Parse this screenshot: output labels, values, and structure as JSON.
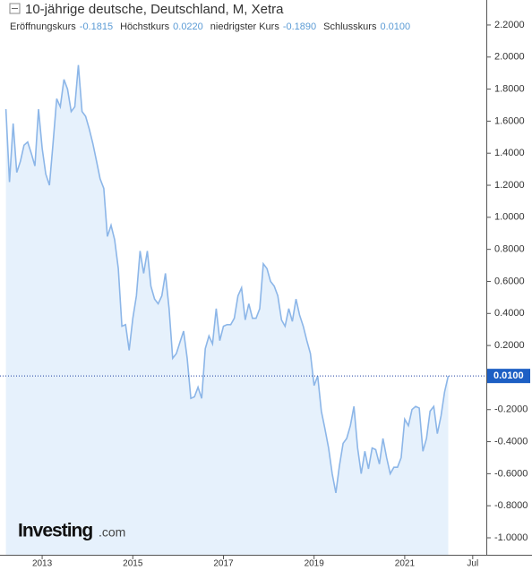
{
  "chart_data": {
    "type": "area",
    "title": "10-jährige deutsche, Deutschland, M, Xetra",
    "ohlc": [
      {
        "name": "Eröffnungskurs",
        "value": "-0.1815"
      },
      {
        "name": "Höchstkurs",
        "value": "0.0220"
      },
      {
        "name": "niedrigster Kurs",
        "value": "-0.1890"
      },
      {
        "name": "Schlusskurs",
        "value": "0.0100"
      }
    ],
    "watermark": "Investing",
    "watermark_suffix": ".com",
    "color": "#8cb6e8",
    "fill": "#e6f1fc",
    "x": [
      2012.2,
      2012.28,
      2012.36,
      2012.44,
      2012.52,
      2012.6,
      2012.68,
      2012.76,
      2012.84,
      2012.92,
      2013,
      2013.08,
      2013.16,
      2013.24,
      2013.32,
      2013.4,
      2013.48,
      2013.56,
      2013.64,
      2013.72,
      2013.8,
      2013.88,
      2013.96,
      2014.04,
      2014.12,
      2014.2,
      2014.28,
      2014.36,
      2014.44,
      2014.52,
      2014.6,
      2014.68,
      2014.76,
      2014.84,
      2014.92,
      2015,
      2015.08,
      2015.16,
      2015.24,
      2015.32,
      2015.4,
      2015.48,
      2015.56,
      2015.64,
      2015.72,
      2015.8,
      2015.88,
      2015.96,
      2016.04,
      2016.12,
      2016.2,
      2016.28,
      2016.36,
      2016.44,
      2016.52,
      2016.6,
      2016.68,
      2016.76,
      2016.84,
      2016.92,
      2017,
      2017.08,
      2017.16,
      2017.24,
      2017.32,
      2017.4,
      2017.48,
      2017.56,
      2017.64,
      2017.72,
      2017.8,
      2017.88,
      2017.96,
      2018.04,
      2018.12,
      2018.2,
      2018.28,
      2018.36,
      2018.44,
      2018.52,
      2018.6,
      2018.68,
      2018.76,
      2018.84,
      2018.92,
      2019,
      2019.08,
      2019.16,
      2019.24,
      2019.32,
      2019.4,
      2019.48,
      2019.56,
      2019.64,
      2019.72,
      2019.8,
      2019.88,
      2019.96,
      2020.04,
      2020.12,
      2020.2,
      2020.28,
      2020.36,
      2020.44,
      2020.52,
      2020.6,
      2020.68,
      2020.76,
      2020.84,
      2020.92,
      2021,
      2021.08,
      2021.16,
      2021.24,
      2021.32,
      2021.4,
      2021.48,
      2021.56,
      2021.64,
      2021.72,
      2021.8,
      2021.88,
      2021.96
    ],
    "values": [
      1.675,
      1.22,
      1.585,
      1.28,
      1.35,
      1.45,
      1.47,
      1.4,
      1.32,
      1.675,
      1.43,
      1.27,
      1.2,
      1.46,
      1.74,
      1.69,
      1.86,
      1.8,
      1.66,
      1.69,
      1.95,
      1.66,
      1.63,
      1.55,
      1.46,
      1.35,
      1.24,
      1.18,
      0.88,
      0.95,
      0.86,
      0.68,
      0.32,
      0.33,
      0.17,
      0.37,
      0.51,
      0.79,
      0.65,
      0.79,
      0.57,
      0.49,
      0.46,
      0.51,
      0.65,
      0.43,
      0.12,
      0.15,
      0.22,
      0.29,
      0.12,
      -0.13,
      -0.12,
      -0.06,
      -0.13,
      0.18,
      0.26,
      0.21,
      0.43,
      0.23,
      0.32,
      0.33,
      0.33,
      0.37,
      0.51,
      0.56,
      0.36,
      0.46,
      0.37,
      0.37,
      0.43,
      0.71,
      0.68,
      0.6,
      0.57,
      0.51,
      0.36,
      0.32,
      0.43,
      0.35,
      0.49,
      0.39,
      0.32,
      0.23,
      0.15,
      -0.05,
      0.01,
      -0.21,
      -0.32,
      -0.44,
      -0.6,
      -0.72,
      -0.55,
      -0.41,
      -0.38,
      -0.3,
      -0.18,
      -0.44,
      -0.6,
      -0.46,
      -0.57,
      -0.44,
      -0.45,
      -0.54,
      -0.38,
      -0.5,
      -0.6,
      -0.56,
      -0.56,
      -0.5,
      -0.26,
      -0.3,
      -0.2,
      -0.18,
      -0.19,
      -0.46,
      -0.38,
      -0.21,
      -0.18,
      -0.35,
      -0.24,
      -0.09,
      0.01
    ],
    "last_value": {
      "value": 0.01,
      "label": "0.0100"
    },
    "xlim": [
      2012.07,
      2022.8
    ],
    "xticks": [
      2013,
      2015,
      2017,
      2019,
      2021,
      {
        "value": 2022.5,
        "label": "Jul"
      }
    ],
    "ylim": [
      -1.106,
      2.356
    ],
    "yticks": [
      {
        "value": 2.2,
        "label": "2.2000"
      },
      {
        "value": 2.0,
        "label": "2.0000"
      },
      {
        "value": 1.8,
        "label": "1.8000"
      },
      {
        "value": 1.6,
        "label": "1.6000"
      },
      {
        "value": 1.4,
        "label": "1.4000"
      },
      {
        "value": 1.2,
        "label": "1.2000"
      },
      {
        "value": 1.0,
        "label": "1.0000"
      },
      {
        "value": 0.8,
        "label": "0.8000"
      },
      {
        "value": 0.6,
        "label": "0.6000"
      },
      {
        "value": 0.4,
        "label": "0.4000"
      },
      {
        "value": 0.2,
        "label": "0.2000"
      },
      {
        "value": -0.2,
        "label": "-0.2000"
      },
      {
        "value": -0.4,
        "label": "-0.4000"
      },
      {
        "value": -0.6,
        "label": "-0.6000"
      },
      {
        "value": -0.8,
        "label": "-0.8000"
      },
      {
        "value": -1.0,
        "label": "-1.0000"
      }
    ]
  }
}
